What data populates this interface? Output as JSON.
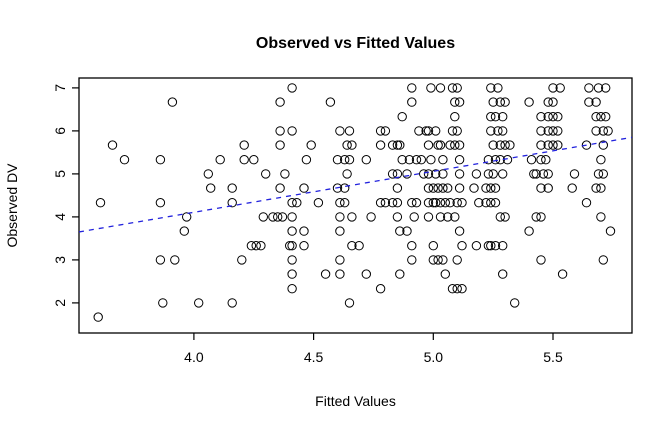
{
  "chart_data": {
    "type": "scatter",
    "title": "Observed vs Fitted Values",
    "xlabel": "Fitted Values",
    "ylabel": "Observed DV",
    "x_ticks": [
      4.0,
      4.5,
      5.0,
      5.5
    ],
    "x_tick_labels": [
      "4.0",
      "4.5",
      "5.0",
      "5.5"
    ],
    "y_ticks": [
      2,
      3,
      4,
      5,
      6,
      7
    ],
    "y_tick_labels": [
      "2",
      "3",
      "4",
      "5",
      "6",
      "7"
    ],
    "xlim": [
      3.52,
      5.83
    ],
    "ylim": [
      1.3,
      7.23
    ],
    "grid": false,
    "legend": "none",
    "marker": "open-circle",
    "point_color": "#000000",
    "fit_line": {
      "style": "dashed",
      "color": "#2222DD",
      "x1": 3.52,
      "y1": 3.65,
      "x2": 5.83,
      "y2": 5.85
    },
    "groups": [
      {
        "observed": 7.0,
        "fitted": [
          4.41,
          4.91,
          4.99,
          5.03,
          5.08,
          5.1,
          5.24,
          5.27,
          5.5,
          5.53,
          5.65,
          5.69,
          5.72
        ]
      },
      {
        "observed": 6.67,
        "fitted": [
          3.91,
          4.36,
          4.57,
          4.91,
          5.09,
          5.11,
          5.25,
          5.28,
          5.3,
          5.4,
          5.48,
          5.5,
          5.65,
          5.68
        ]
      },
      {
        "observed": 6.33,
        "fitted": [
          4.87,
          5.09,
          5.24,
          5.26,
          5.29,
          5.45,
          5.48,
          5.5,
          5.52,
          5.68,
          5.7,
          5.72
        ]
      },
      {
        "observed": 6.0,
        "fitted": [
          4.36,
          4.41,
          4.61,
          4.65,
          4.78,
          4.8,
          4.94,
          4.97,
          4.98,
          5.01,
          5.08,
          5.1,
          5.24,
          5.27,
          5.29,
          5.45,
          5.48,
          5.5,
          5.52,
          5.68,
          5.71,
          5.73
        ]
      },
      {
        "observed": 5.67,
        "fitted": [
          3.66,
          4.21,
          4.36,
          4.49,
          4.64,
          4.66,
          4.78,
          4.83,
          4.85,
          4.86,
          4.98,
          5.02,
          5.03,
          5.07,
          5.09,
          5.11,
          5.25,
          5.28,
          5.3,
          5.32,
          5.45,
          5.48,
          5.5,
          5.52,
          5.64,
          5.71
        ]
      },
      {
        "observed": 5.33,
        "fitted": [
          3.71,
          3.86,
          4.11,
          4.21,
          4.25,
          4.47,
          4.6,
          4.63,
          4.65,
          4.72,
          4.87,
          4.9,
          4.93,
          4.95,
          4.99,
          5.04,
          5.11,
          5.23,
          5.26,
          5.28,
          5.31,
          5.41,
          5.45,
          5.47,
          5.7
        ]
      },
      {
        "observed": 5.0,
        "fitted": [
          4.06,
          4.3,
          4.38,
          4.64,
          4.83,
          4.85,
          4.89,
          4.96,
          4.98,
          5.01,
          5.04,
          5.11,
          5.18,
          5.23,
          5.25,
          5.29,
          5.42,
          5.43,
          5.46,
          5.48,
          5.59,
          5.69,
          5.71
        ]
      },
      {
        "observed": 4.67,
        "fitted": [
          4.07,
          4.16,
          4.36,
          4.46,
          4.6,
          4.63,
          4.85,
          4.98,
          5.0,
          5.02,
          5.04,
          5.06,
          5.11,
          5.17,
          5.22,
          5.24,
          5.26,
          5.45,
          5.48,
          5.58,
          5.68,
          5.7
        ]
      },
      {
        "observed": 4.33,
        "fitted": [
          3.61,
          3.86,
          4.16,
          4.41,
          4.43,
          4.52,
          4.61,
          4.63,
          4.78,
          4.8,
          4.83,
          4.85,
          4.91,
          4.93,
          4.98,
          5.0,
          5.01,
          5.03,
          5.05,
          5.07,
          5.1,
          5.12,
          5.19,
          5.22,
          5.24,
          5.26,
          5.64
        ]
      },
      {
        "observed": 4.0,
        "fitted": [
          3.97,
          4.29,
          4.33,
          4.35,
          4.37,
          4.41,
          4.61,
          4.66,
          4.74,
          4.85,
          4.92,
          4.98,
          5.03,
          5.06,
          5.09,
          5.28,
          5.3,
          5.43,
          5.45,
          5.7
        ]
      },
      {
        "observed": 3.67,
        "fitted": [
          3.96,
          4.41,
          4.46,
          4.61,
          4.86,
          4.89,
          5.11,
          5.4,
          5.74
        ]
      },
      {
        "observed": 3.33,
        "fitted": [
          4.24,
          4.26,
          4.28,
          4.4,
          4.41,
          4.46,
          4.66,
          4.69,
          4.91,
          5.0,
          5.12,
          5.18,
          5.23,
          5.24,
          5.26,
          5.29
        ]
      },
      {
        "observed": 3.0,
        "fitted": [
          3.86,
          3.92,
          4.2,
          4.41,
          4.61,
          4.91,
          5.0,
          5.02,
          5.04,
          5.1,
          5.45,
          5.71
        ]
      },
      {
        "observed": 2.67,
        "fitted": [
          4.41,
          4.55,
          4.61,
          4.72,
          4.86,
          5.05,
          5.29,
          5.54
        ]
      },
      {
        "observed": 2.33,
        "fitted": [
          4.41,
          4.78,
          5.08,
          5.1,
          5.12
        ]
      },
      {
        "observed": 2.0,
        "fitted": [
          3.87,
          4.02,
          4.16,
          4.65,
          5.34
        ]
      },
      {
        "observed": 1.67,
        "fitted": [
          3.6
        ]
      }
    ]
  }
}
